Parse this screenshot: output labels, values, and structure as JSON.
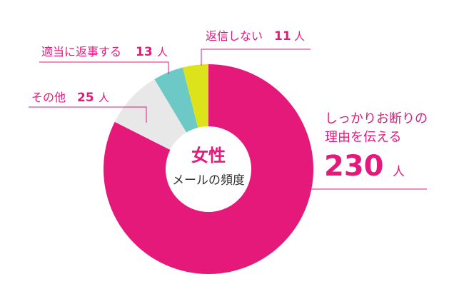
{
  "chart_data": {
    "type": "pie",
    "center": {
      "title": "女性",
      "subtitle": "メールの頻度"
    },
    "slices": [
      {
        "label_lines": [
          "しっかりお断りの",
          "理由を伝える"
        ],
        "value": 230,
        "unit": "人",
        "color": "#e5197a"
      },
      {
        "label": "その他",
        "value": 25,
        "unit": "人",
        "color": "#e8e8e8"
      },
      {
        "label": "適当に返事する",
        "value": 13,
        "unit": "人",
        "color": "#6cc9c5"
      },
      {
        "label": "返信しない",
        "value": 11,
        "unit": "人",
        "color": "#dce31a"
      }
    ],
    "legend": "none"
  }
}
